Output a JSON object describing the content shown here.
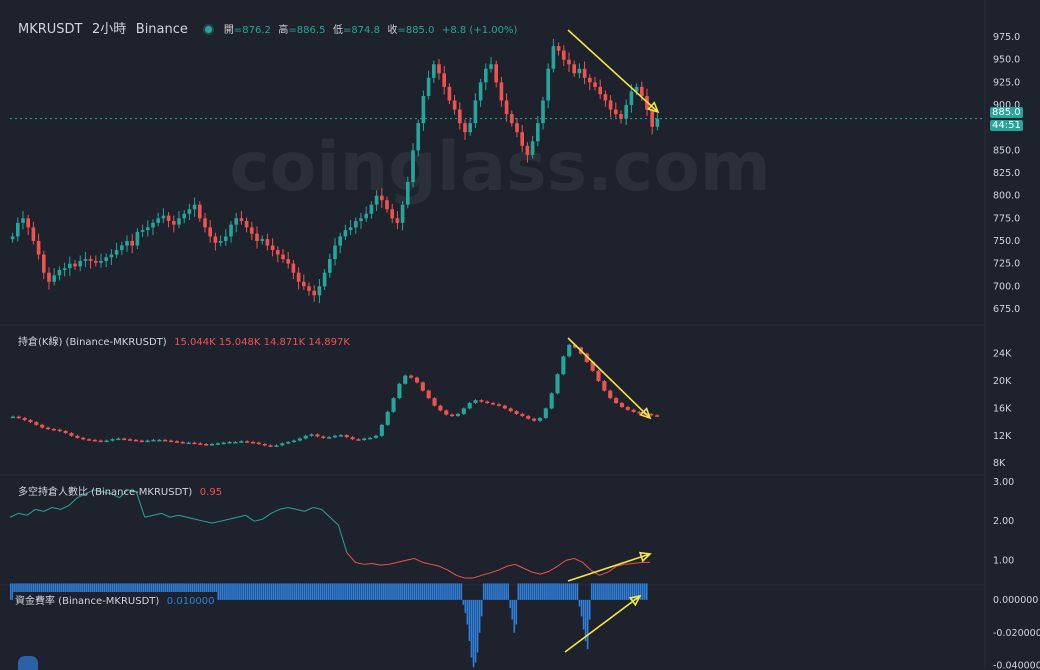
{
  "header": {
    "symbol": "MKRUSDT",
    "interval": "2小時",
    "exchange": "Binance",
    "open_label": "開",
    "open_value": "=876.2",
    "high_label": "高",
    "high_value": "=886.5",
    "low_label": "低",
    "low_value": "=874.8",
    "close_label": "收",
    "close_value": "=885.0",
    "change": "+8.8 (+1.00%)"
  },
  "watermark": "coinglass.com",
  "price_tag": {
    "price": "885.0",
    "countdown": "44:51"
  },
  "colors": {
    "bg": "#1e222d",
    "up": "#26a69a",
    "down": "#ef5350",
    "oi_up": "#26a69a",
    "funding": "#2f7ed8",
    "arrow": "#f5e642",
    "ls_green": "#26a69a",
    "ls_red": "#ef5350"
  },
  "indicators": {
    "oi_title": "持倉(K線) (Binance-MKRUSDT)",
    "oi_values": "15.044K  15.048K  14.871K  14.897K",
    "ls_title": "多空持倉人數比 (Binance-MKRUSDT)",
    "ls_value": "0.95",
    "funding_title": "資金費率 (Binance-MKRUSDT)",
    "funding_value": "0.010000"
  },
  "chart_data": [
    {
      "type": "candlestick",
      "name": "MKRUSDT 2h",
      "y_ticks": [
        "975.0",
        "950.0",
        "925.0",
        "900.0",
        "850.0",
        "825.0",
        "800.0",
        "775.0",
        "750.0",
        "725.0",
        "700.0",
        "675.0"
      ],
      "ylim": [
        665,
        985
      ],
      "last_price": 885.0,
      "closes": [
        755,
        770,
        775,
        765,
        750,
        735,
        715,
        705,
        712,
        718,
        720,
        725,
        722,
        728,
        730,
        728,
        726,
        728,
        732,
        735,
        740,
        745,
        750,
        745,
        760,
        762,
        765,
        770,
        775,
        778,
        772,
        768,
        775,
        780,
        785,
        790,
        775,
        765,
        755,
        748,
        750,
        755,
        768,
        775,
        772,
        765,
        758,
        750,
        752,
        745,
        740,
        735,
        730,
        725,
        715,
        705,
        700,
        695,
        690,
        700,
        715,
        730,
        745,
        755,
        762,
        765,
        772,
        775,
        780,
        790,
        800,
        795,
        785,
        775,
        770,
        790,
        815,
        850,
        880,
        910,
        930,
        945,
        935,
        920,
        905,
        895,
        880,
        870,
        880,
        905,
        925,
        940,
        945,
        925,
        905,
        890,
        880,
        870,
        855,
        845,
        860,
        880,
        905,
        940,
        965,
        960,
        950,
        945,
        935,
        940,
        930,
        925,
        920,
        912,
        905,
        895,
        890,
        885,
        900,
        915,
        920,
        910,
        895,
        876,
        885
      ]
    },
    {
      "type": "candlestick",
      "name": "持倉(K線)",
      "y_ticks": [
        "24K",
        "20K",
        "16K",
        "12K",
        "8K"
      ],
      "ylim": [
        7000,
        26000
      ],
      "closes": [
        14.8,
        14.6,
        14.3,
        14.0,
        13.6,
        13.2,
        13.0,
        12.9,
        12.7,
        12.4,
        12.0,
        11.7,
        11.5,
        11.4,
        11.3,
        11.2,
        11.3,
        11.5,
        11.6,
        11.5,
        11.4,
        11.3,
        11.2,
        11.3,
        11.4,
        11.4,
        11.3,
        11.2,
        11.1,
        11.0,
        11.0,
        10.9,
        10.8,
        10.7,
        10.8,
        10.9,
        11.0,
        11.1,
        11.1,
        11.2,
        11.1,
        11.0,
        10.8,
        10.6,
        10.5,
        10.6,
        10.9,
        11.1,
        11.3,
        11.6,
        12.0,
        12.2,
        11.9,
        11.7,
        11.8,
        12.0,
        12.1,
        11.8,
        11.5,
        11.4,
        11.6,
        11.7,
        12.0,
        13.6,
        15.5,
        17.5,
        19.6,
        20.8,
        20.5,
        19.8,
        18.6,
        17.5,
        16.4,
        15.7,
        15.1,
        14.9,
        15.2,
        16.0,
        16.8,
        17.2,
        17.0,
        16.8,
        16.6,
        16.4,
        16.0,
        15.6,
        15.2,
        14.9,
        14.5,
        14.2,
        14.6,
        16.0,
        18.2,
        21.0,
        23.6,
        25.3,
        24.9,
        24.0,
        22.8,
        21.5,
        20.0,
        18.6,
        17.5,
        16.8,
        16.2,
        15.8,
        15.5,
        15.3,
        15.2,
        15.0,
        14.9
      ]
    },
    {
      "type": "line",
      "name": "多空持倉人數比",
      "y_ticks": [
        "3.00",
        "2.00",
        "1.00"
      ],
      "ylim": [
        0.5,
        3.05
      ],
      "values": [
        2.1,
        2.2,
        2.15,
        2.3,
        2.25,
        2.35,
        2.3,
        2.4,
        2.6,
        2.7,
        2.8,
        2.75,
        2.7,
        2.6,
        2.8,
        2.75,
        2.1,
        2.15,
        2.2,
        2.1,
        2.15,
        2.1,
        2.05,
        2.0,
        1.95,
        2.0,
        2.05,
        2.1,
        2.15,
        2.0,
        2.05,
        2.2,
        2.3,
        2.35,
        2.3,
        2.25,
        2.35,
        2.3,
        2.1,
        1.9,
        1.2,
        0.95,
        0.9,
        0.92,
        0.88,
        0.9,
        0.95,
        1.0,
        1.05,
        0.95,
        0.9,
        0.85,
        0.75,
        0.62,
        0.55,
        0.55,
        0.62,
        0.68,
        0.75,
        0.85,
        0.9,
        0.8,
        0.7,
        0.65,
        0.72,
        0.85,
        1.0,
        1.05,
        0.95,
        0.75,
        0.62,
        0.7,
        0.85,
        0.9,
        0.92,
        0.95,
        0.95
      ]
    },
    {
      "type": "bar",
      "name": "資金費率",
      "y_ticks": [
        "0.000000",
        "-0.020000",
        "-0.040000"
      ],
      "ylim": [
        -0.042,
        0.006
      ],
      "values": [
        0.01,
        0.01,
        0.01,
        0.01,
        0.01,
        0.01,
        0.01,
        0.01,
        0.01,
        0.01,
        0.01,
        0.01,
        0.01,
        0.01,
        0.01,
        0.01,
        0.01,
        0.01,
        0.01,
        0.01,
        0.01,
        0.01,
        0.01,
        0.01,
        0.01,
        0.01,
        0.01,
        0.01,
        0.01,
        0.01,
        0.01,
        0.01,
        0.01,
        0.01,
        0.01,
        0.01,
        0.01,
        0.01,
        0.01,
        0.01,
        0.01,
        0.01,
        0.01,
        0.01,
        0.01,
        0.01,
        0.01,
        0.01,
        0.01,
        0.01,
        0.01,
        0.01,
        0.01,
        0.01,
        0.01,
        0.01,
        0.01,
        0.01,
        0.01,
        0.01,
        0.01,
        0.01,
        0.01,
        0.01,
        0.01,
        0.01,
        0.01,
        0.01,
        0.01,
        0.01,
        0.01,
        0.01,
        0.01,
        0.01,
        0.01,
        0.01,
        0.01,
        0.01,
        0.01,
        0.01,
        0.01,
        0.01,
        0.01,
        0.01,
        0.01,
        0.01,
        0.01,
        0.01,
        0.01,
        0.01,
        0.01,
        0.01,
        0.01,
        0.01,
        0.01,
        0.01,
        0.01,
        0.01,
        0.01,
        0.01,
        0.01,
        0.01,
        0.01,
        0.01,
        0.01,
        0.01,
        0.01,
        0.01,
        0.01,
        0.01,
        0.01,
        0.01,
        0.01,
        0.01,
        0.01,
        0.01,
        0.01,
        0.01,
        0.01,
        0.01,
        0.01,
        0.01,
        0.01,
        0.01,
        0.01,
        0.01,
        0.01,
        0.01,
        0.01,
        0.01,
        0.01,
        0.01,
        0.01,
        0.01,
        0.01,
        0.01,
        0.01,
        0.01,
        0.01,
        0.01,
        0.01,
        0.01,
        0.01,
        0.01,
        0.01,
        0.01,
        0.01,
        0.01,
        0.01,
        0.01,
        0.01,
        0.01,
        0.01,
        0.01,
        0.01,
        0.01,
        0.01,
        0.01,
        0.01,
        0.01,
        0.01,
        0.01,
        0.01,
        0.01,
        0.01,
        0.01,
        0.01,
        0.01,
        0.01,
        0.01,
        0.01,
        0.01,
        0.01,
        0.01,
        0.01,
        0.01,
        0.01,
        0.01,
        0.01,
        0.01,
        0.01,
        0.01,
        0.01,
        0.01,
        0.01,
        0.01,
        0.01,
        0.01,
        0.01,
        0.01,
        0.01,
        0.01,
        0.01,
        0.01,
        0.01,
        0.01,
        0.01,
        0.01,
        0.01,
        0.01,
        0.01,
        0.01,
        0.01,
        0.01,
        0.01,
        0.01,
        0.01,
        0.01,
        0.01,
        0.01,
        0.01,
        0.01,
        0.01,
        0.01,
        0.01,
        0.01,
        0.01,
        0.01,
        0.01,
        0.01,
        0.01,
        0.01,
        -0.003,
        -0.008,
        -0.015,
        -0.025,
        -0.035,
        -0.041,
        -0.038,
        -0.032,
        -0.02,
        -0.01,
        0.01,
        0.01,
        0.01,
        0.01,
        0.01,
        0.01,
        0.01,
        0.01,
        0.01,
        0.01,
        0.01,
        0.01,
        0.01,
        -0.005,
        -0.012,
        -0.02,
        -0.015,
        0.01,
        0.01,
        0.01,
        0.01,
        0.01,
        0.01,
        0.01,
        0.01,
        0.01,
        0.01,
        0.01,
        0.01,
        0.01,
        0.01,
        0.01,
        0.01,
        0.01,
        0.01,
        0.01,
        0.01,
        0.01,
        0.01,
        0.01,
        0.01,
        0.01,
        0.01,
        0.01,
        0.01,
        0.01,
        0.01,
        -0.004,
        -0.01,
        -0.018,
        -0.025,
        -0.03,
        -0.012,
        0.01,
        0.01,
        0.01,
        0.01,
        0.01,
        0.01,
        0.01,
        0.01,
        0.01,
        0.01,
        0.01,
        0.01,
        0.01,
        0.01,
        0.01,
        0.01,
        0.01,
        0.01,
        0.01,
        0.01,
        0.01,
        0.01,
        0.01,
        0.01,
        0.01,
        0.01,
        0.01,
        0.01
      ]
    }
  ]
}
